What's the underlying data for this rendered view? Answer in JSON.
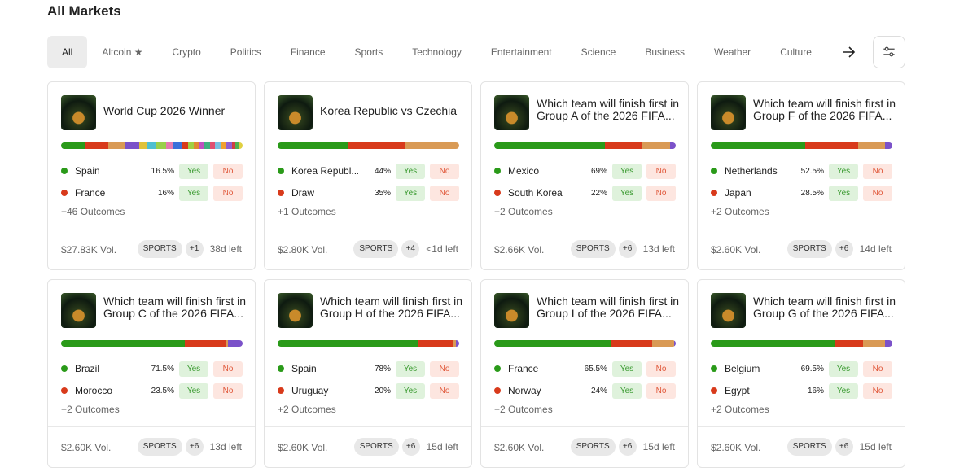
{
  "header": {
    "title": "All Markets"
  },
  "tabs": [
    "All",
    "Altcoin ★",
    "Crypto",
    "Politics",
    "Finance",
    "Sports",
    "Technology",
    "Entertainment",
    "Science",
    "Business",
    "Weather",
    "Culture"
  ],
  "buttons": {
    "yes": "Yes",
    "no": "No"
  },
  "cards": [
    {
      "title": "World Cup 2026 Winner",
      "bar": [
        {
          "value": 13,
          "color": "#2a9a19"
        },
        {
          "value": 13,
          "color": "#d83a1b"
        },
        {
          "value": 9,
          "color": "#d99a55"
        },
        {
          "value": 8,
          "color": "#7b52c9"
        },
        {
          "value": 4,
          "color": "#e0c23a"
        },
        {
          "value": 5,
          "color": "#4fbfd0"
        },
        {
          "value": 6,
          "color": "#9ad04a"
        },
        {
          "value": 4,
          "color": "#e57ab0"
        },
        {
          "value": 5,
          "color": "#3a6fd9"
        },
        {
          "value": 3,
          "color": "#d83a1b"
        },
        {
          "value": 3,
          "color": "#a0d040"
        },
        {
          "value": 3,
          "color": "#e08a30"
        },
        {
          "value": 3,
          "color": "#c050c0"
        },
        {
          "value": 3,
          "color": "#40b080"
        },
        {
          "value": 3,
          "color": "#e05070"
        },
        {
          "value": 3,
          "color": "#7ac0e0"
        },
        {
          "value": 3,
          "color": "#f0a030"
        },
        {
          "value": 3,
          "color": "#9060d0"
        },
        {
          "value": 2,
          "color": "#d04040"
        },
        {
          "value": 2,
          "color": "#50b050"
        },
        {
          "value": 2,
          "color": "#e0d040"
        }
      ],
      "outcomes": [
        {
          "name": "Spain",
          "pct": "16.5%"
        },
        {
          "name": "France",
          "pct": "16%"
        }
      ],
      "more": "+46 Outcomes",
      "volume": "$27.83K Vol.",
      "tag": "SPORTS",
      "extra": "+1",
      "left": "38d left"
    },
    {
      "title": "Korea Republic vs Czechia",
      "bar": [
        {
          "value": 39,
          "color": "#2a9a19"
        },
        {
          "value": 31,
          "color": "#d83a1b"
        },
        {
          "value": 30,
          "color": "#d99a55"
        }
      ],
      "outcomes": [
        {
          "name": "Korea Republ...",
          "pct": "44%"
        },
        {
          "name": "Draw",
          "pct": "35%"
        }
      ],
      "more": "+1 Outcomes",
      "volume": "$2.80K Vol.",
      "tag": "SPORTS",
      "extra": "+4",
      "left": "<1d left"
    },
    {
      "title": "Which team will finish first in Group A of the 2026 FIFA...",
      "bar": [
        {
          "value": 61,
          "color": "#2a9a19"
        },
        {
          "value": 20,
          "color": "#d83a1b"
        },
        {
          "value": 16,
          "color": "#d99a55"
        },
        {
          "value": 3,
          "color": "#7b52c9"
        }
      ],
      "outcomes": [
        {
          "name": "Mexico",
          "pct": "69%"
        },
        {
          "name": "South Korea",
          "pct": "22%"
        }
      ],
      "more": "+2 Outcomes",
      "volume": "$2.66K Vol.",
      "tag": "SPORTS",
      "extra": "+6",
      "left": "13d left"
    },
    {
      "title": "Which team will finish first in Group F of the 2026 FIFA...",
      "bar": [
        {
          "value": 52,
          "color": "#2a9a19"
        },
        {
          "value": 29,
          "color": "#d83a1b"
        },
        {
          "value": 15,
          "color": "#d99a55"
        },
        {
          "value": 4,
          "color": "#7b52c9"
        }
      ],
      "outcomes": [
        {
          "name": "Netherlands",
          "pct": "52.5%"
        },
        {
          "name": "Japan",
          "pct": "28.5%"
        }
      ],
      "more": "+2 Outcomes",
      "volume": "$2.60K Vol.",
      "tag": "SPORTS",
      "extra": "+6",
      "left": "14d left"
    },
    {
      "title": "Which team will finish first in Group C of the 2026 FIFA...",
      "bar": [
        {
          "value": 68,
          "color": "#2a9a19"
        },
        {
          "value": 23,
          "color": "#d83a1b"
        },
        {
          "value": 1,
          "color": "#d99a55"
        },
        {
          "value": 8,
          "color": "#7b52c9"
        }
      ],
      "outcomes": [
        {
          "name": "Brazil",
          "pct": "71.5%"
        },
        {
          "name": "Morocco",
          "pct": "23.5%"
        }
      ],
      "more": "+2 Outcomes",
      "volume": "$2.60K Vol.",
      "tag": "SPORTS",
      "extra": "+6",
      "left": "13d left"
    },
    {
      "title": "Which team will finish first in Group H of the 2026 FIFA...",
      "bar": [
        {
          "value": 77,
          "color": "#2a9a19"
        },
        {
          "value": 20,
          "color": "#d83a1b"
        },
        {
          "value": 1,
          "color": "#d99a55"
        },
        {
          "value": 2,
          "color": "#7b52c9"
        }
      ],
      "outcomes": [
        {
          "name": "Spain",
          "pct": "78%"
        },
        {
          "name": "Uruguay",
          "pct": "20%"
        }
      ],
      "more": "+2 Outcomes",
      "volume": "$2.60K Vol.",
      "tag": "SPORTS",
      "extra": "+6",
      "left": "15d left"
    },
    {
      "title": "Which team will finish first in Group I of the 2026 FIFA...",
      "bar": [
        {
          "value": 64,
          "color": "#2a9a19"
        },
        {
          "value": 23,
          "color": "#d83a1b"
        },
        {
          "value": 12,
          "color": "#d99a55"
        },
        {
          "value": 1,
          "color": "#7b52c9"
        }
      ],
      "outcomes": [
        {
          "name": "France",
          "pct": "65.5%"
        },
        {
          "name": "Norway",
          "pct": "24%"
        }
      ],
      "more": "+2 Outcomes",
      "volume": "$2.60K Vol.",
      "tag": "SPORTS",
      "extra": "+6",
      "left": "15d left"
    },
    {
      "title": "Which team will finish first in Group G of the 2026 FIFA...",
      "bar": [
        {
          "value": 68,
          "color": "#2a9a19"
        },
        {
          "value": 16,
          "color": "#d83a1b"
        },
        {
          "value": 12,
          "color": "#d99a55"
        },
        {
          "value": 4,
          "color": "#7b52c9"
        }
      ],
      "outcomes": [
        {
          "name": "Belgium",
          "pct": "69.5%"
        },
        {
          "name": "Egypt",
          "pct": "16%"
        }
      ],
      "more": "+2 Outcomes",
      "volume": "$2.60K Vol.",
      "tag": "SPORTS",
      "extra": "+6",
      "left": "15d left"
    }
  ]
}
